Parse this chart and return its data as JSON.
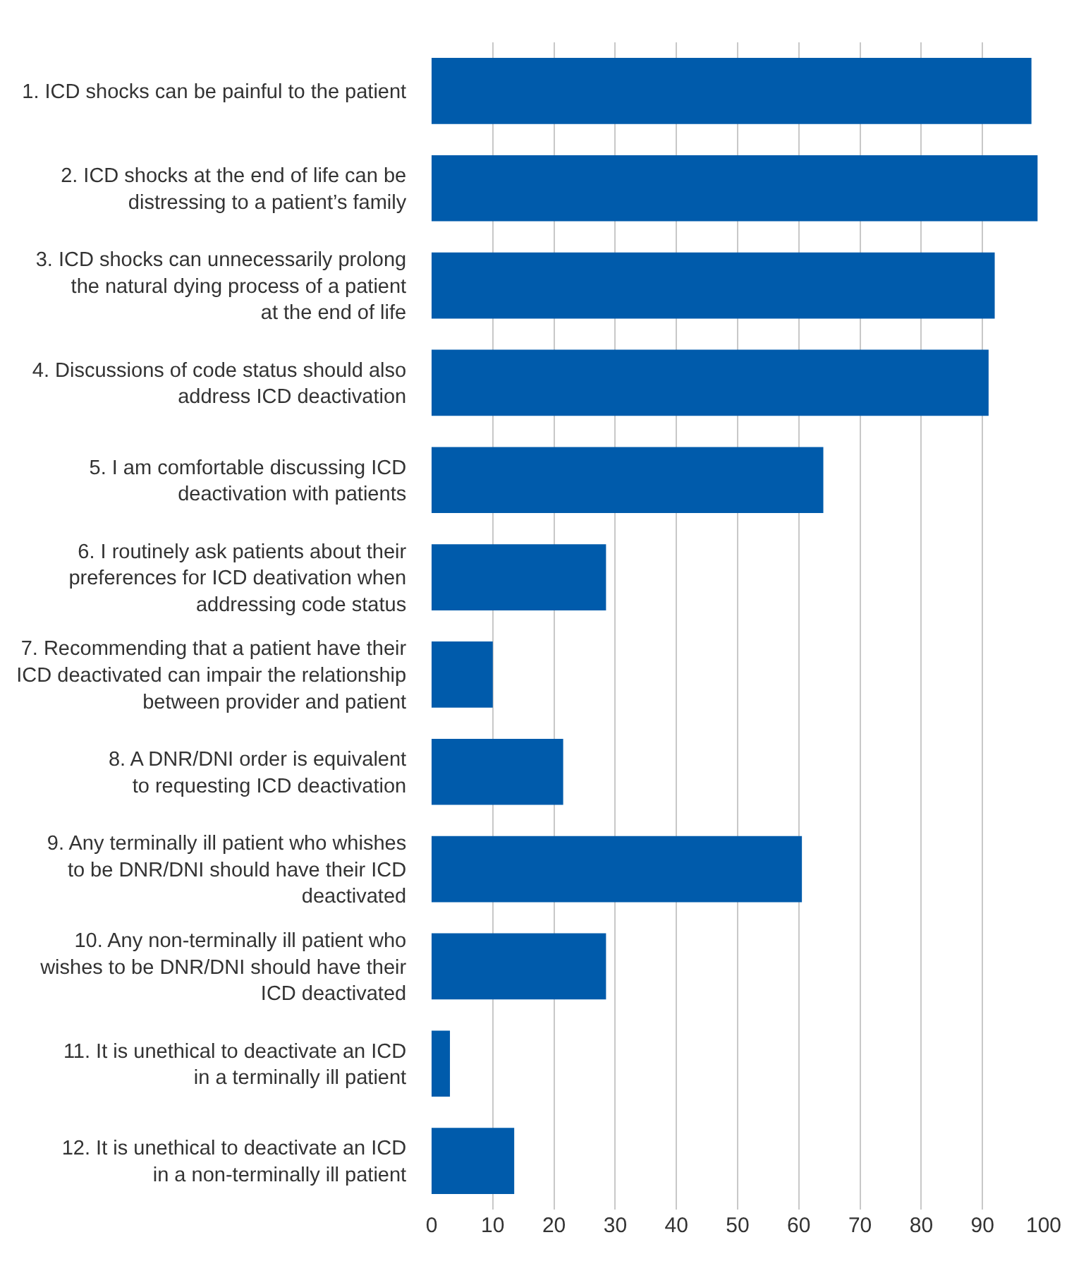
{
  "chart_data": {
    "type": "bar",
    "orientation": "horizontal",
    "categories": [
      "1. ICD shocks can be painful to the patient",
      "2. ICD shocks at the end of life can be\ndistressing to a patient’s family",
      "3. ICD shocks can unnecessarily prolong\nthe natural dying process of a patient\nat the end of life",
      "4. Discussions of code status should also\naddress ICD deactivation",
      "5. I am comfortable discussing ICD\ndeactivation with patients",
      "6. I routinely ask patients about their\npreferences for ICD deativation when\naddressing code status",
      "7. Recommending that a patient have their\nICD deactivated can impair the relationship\nbetween provider and patient",
      "8. A DNR/DNI order is equivalent\nto requesting ICD deactivation",
      "9. Any terminally ill patient who whishes\nto be DNR/DNI should have their ICD\ndeactivated",
      "10. Any non-terminally ill patient who\nwishes to be DNR/DNI should have their\nICD deactivated",
      "11. It is unethical to deactivate an ICD\nin a terminally ill patient",
      "12. It is unethical to deactivate an ICD\nin a non-terminally ill patient"
    ],
    "values": [
      98,
      99,
      92,
      91,
      64,
      28.5,
      10,
      21.5,
      60.5,
      28.5,
      3,
      13.5
    ],
    "color": "#005bab",
    "xlim": [
      0,
      100
    ],
    "xticks": [
      0,
      10,
      20,
      30,
      40,
      50,
      60,
      70,
      80,
      90,
      100
    ],
    "grid": "x"
  }
}
